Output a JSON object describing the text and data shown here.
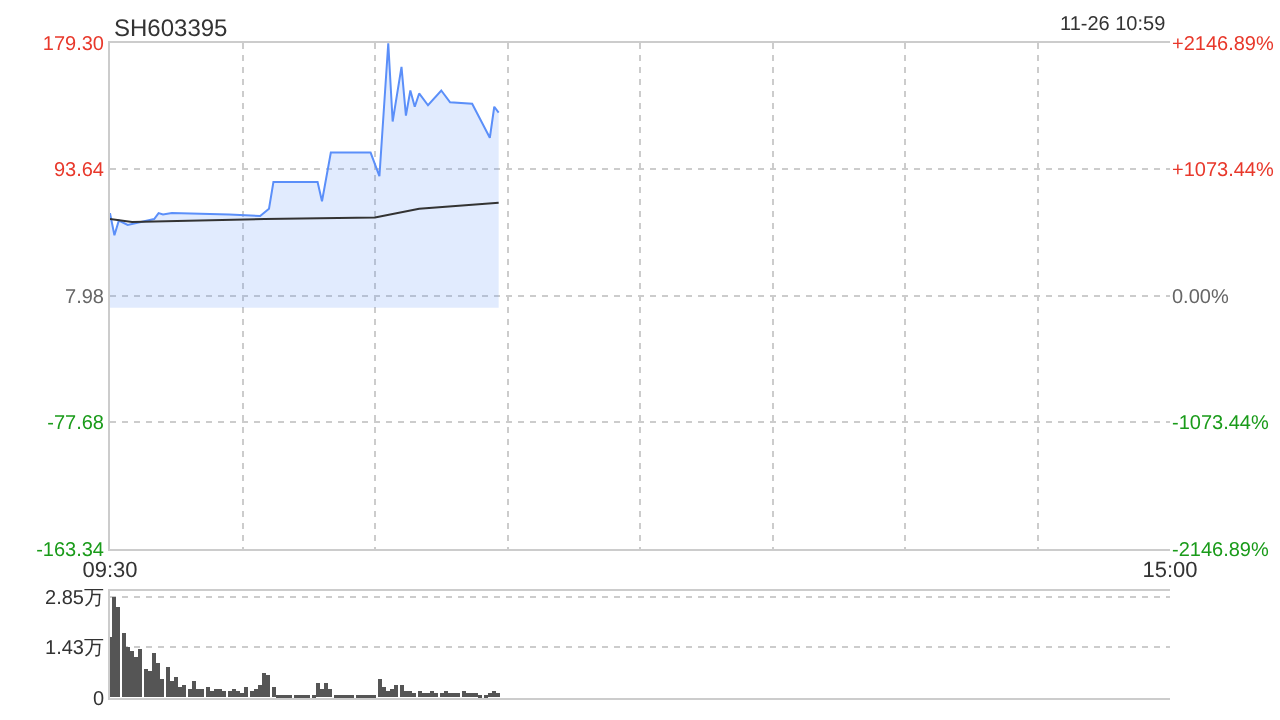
{
  "chart_data": [
    {
      "type": "line",
      "title": "SH603395",
      "annotations": [
        "11-26 10:59"
      ],
      "grid": true,
      "marker": "none",
      "categories": [
        "09:30",
        null,
        null,
        null,
        null,
        null,
        null,
        null,
        null,
        null,
        null,
        null,
        null,
        null,
        null,
        null,
        null,
        null,
        null,
        null,
        null,
        null,
        null,
        null,
        null,
        null,
        null,
        null,
        null,
        null,
        null,
        null,
        null,
        null,
        null,
        null,
        null,
        null,
        null,
        null,
        null,
        null,
        null,
        null,
        null,
        null,
        null,
        null,
        null,
        null,
        null,
        null,
        null,
        null,
        null,
        null,
        null,
        null,
        null,
        null,
        null,
        null,
        null,
        null,
        null,
        null,
        null,
        null,
        null,
        null,
        null,
        null,
        null,
        null,
        null,
        null,
        null,
        null,
        null,
        null,
        null,
        null,
        null,
        null,
        null,
        null,
        null,
        null,
        null,
        null,
        null,
        null,
        null,
        null,
        null,
        null,
        null,
        null,
        null,
        null,
        null,
        null,
        null,
        null,
        null,
        null,
        null,
        null,
        null,
        null,
        null,
        null,
        null,
        null,
        null,
        null,
        null,
        null,
        null,
        null,
        null,
        null,
        null,
        null,
        null,
        null,
        null,
        null,
        null,
        null,
        null,
        null,
        null,
        null,
        null,
        null,
        null,
        null,
        null,
        null,
        null,
        null,
        null,
        null,
        null,
        null,
        null,
        null,
        null,
        null,
        null,
        null,
        null,
        null,
        null,
        null,
        null,
        null,
        null,
        null,
        null,
        null,
        null,
        null,
        null,
        null,
        null,
        null,
        null,
        null,
        null,
        null,
        null,
        null,
        null,
        null,
        null,
        null,
        null,
        null,
        null,
        null,
        null,
        null,
        null,
        null,
        null,
        null,
        null,
        null,
        null,
        null,
        null,
        null,
        null,
        null,
        null,
        null,
        null,
        null,
        null,
        null,
        null,
        null,
        null,
        null,
        null,
        null,
        null,
        null,
        null,
        null,
        null,
        null,
        null,
        null,
        null,
        null,
        null,
        null,
        null,
        null,
        null,
        null,
        null,
        null,
        null,
        null,
        null,
        null,
        null,
        null,
        null,
        null,
        null,
        null,
        null,
        null,
        null,
        null,
        "15:00"
      ],
      "ylim": [
        -163.34,
        179.3
      ],
      "yticks": [
        {
          "value": -163.34,
          "label": "-163.34"
        },
        {
          "value": -77.68,
          "label": "-77.68"
        },
        {
          "value": 7.98,
          "label": "7.98"
        },
        {
          "value": 93.64,
          "label": "93.64"
        },
        {
          "value": 179.3,
          "label": "179.30"
        }
      ],
      "y2lim": [
        -2146.89,
        2146.89
      ],
      "y2ticks": [
        {
          "value": -2146.89,
          "label": "-2146.89%"
        },
        {
          "value": -1073.44,
          "label": "-1073.44%"
        },
        {
          "value": 0,
          "label": "0.00%"
        },
        {
          "value": 1073.44,
          "label": "+1073.44%"
        },
        {
          "value": 2146.89,
          "label": "+2146.89%"
        }
      ],
      "series": [
        {
          "type": "area",
          "color": "#5b8ff9",
          "values": [
            64,
            49,
            59,
            null,
            56,
            null,
            null,
            58,
            null,
            null,
            60,
            64,
            63,
            null,
            64,
            null,
            null,
            null,
            null,
            null,
            null,
            null,
            null,
            null,
            null,
            null,
            null,
            63,
            null,
            null,
            null,
            null,
            null,
            null,
            62,
            null,
            67,
            85,
            null,
            null,
            null,
            null,
            null,
            null,
            null,
            null,
            null,
            85,
            72,
            null,
            105,
            null,
            null,
            null,
            null,
            null,
            null,
            null,
            null,
            105,
            null,
            89,
            null,
            179,
            126,
            null,
            163,
            130,
            147,
            136,
            145,
            null,
            137,
            null,
            null,
            147,
            null,
            139,
            null,
            null,
            null,
            null,
            138,
            null,
            null,
            null,
            115,
            136,
            132,
            null,
            null,
            null,
            null,
            null,
            null,
            null,
            null,
            null,
            null,
            null,
            null,
            null,
            null,
            null,
            null,
            null,
            null,
            null,
            null,
            null,
            null,
            null,
            null,
            null,
            null,
            null,
            null,
            null,
            null,
            null,
            null,
            null,
            null,
            null,
            null,
            null,
            null,
            null,
            null,
            null,
            null,
            null,
            null,
            null,
            null,
            null,
            null,
            null,
            null,
            null,
            null,
            null,
            null,
            null,
            null,
            null,
            null,
            null,
            null,
            null,
            null,
            null,
            null,
            null,
            null,
            null,
            null,
            null,
            null,
            null,
            null,
            null,
            null,
            null,
            null,
            null,
            null,
            null,
            null,
            null,
            null,
            null,
            null,
            null,
            null,
            null,
            null,
            null,
            null,
            null,
            null,
            null,
            null,
            null,
            null,
            null,
            null,
            null,
            null,
            null,
            null,
            null,
            null,
            null,
            null,
            null,
            null,
            null,
            null,
            null,
            null,
            null,
            null,
            null,
            null,
            null,
            null,
            null,
            null,
            null,
            null,
            null,
            null,
            null,
            null,
            null,
            null,
            null,
            null,
            null,
            null,
            null,
            null,
            null,
            null,
            null,
            null,
            null,
            null,
            null,
            null,
            null,
            null,
            null,
            null,
            null,
            null,
            null,
            null,
            null,
            null
          ]
        },
        {
          "type": "line",
          "color": "#333333",
          "values": [
            60,
            null,
            null,
            null,
            null,
            58,
            null,
            null,
            null,
            null,
            null,
            null,
            null,
            null,
            null,
            null,
            null,
            null,
            null,
            null,
            null,
            null,
            null,
            null,
            null,
            null,
            null,
            null,
            null,
            null,
            null,
            null,
            null,
            null,
            null,
            60,
            null,
            null,
            null,
            null,
            null,
            null,
            null,
            null,
            null,
            null,
            null,
            null,
            null,
            null,
            null,
            null,
            null,
            null,
            null,
            null,
            null,
            null,
            null,
            null,
            61,
            null,
            null,
            null,
            null,
            null,
            null,
            null,
            null,
            null,
            67,
            null,
            null,
            null,
            null,
            null,
            null,
            null,
            null,
            null,
            null,
            null,
            null,
            null,
            null,
            null,
            null,
            null,
            71,
            null,
            null,
            null,
            null,
            null,
            null,
            null,
            null,
            null,
            null,
            null,
            null,
            null,
            null,
            null,
            null,
            null,
            null,
            null,
            null,
            null,
            null,
            null,
            null,
            null,
            null,
            null,
            null,
            null,
            null,
            null,
            null,
            null,
            null,
            null,
            null,
            null,
            null,
            null,
            null,
            null,
            null,
            null,
            null,
            null,
            null,
            null,
            null,
            null,
            null,
            null,
            null,
            null,
            null,
            null,
            null,
            null,
            null,
            null,
            null,
            null,
            null,
            null,
            null,
            null,
            null,
            null,
            null,
            null,
            null,
            null,
            null,
            null,
            null,
            null,
            null,
            null,
            null,
            null,
            null,
            null,
            null,
            null,
            null,
            null,
            null,
            null,
            null,
            null,
            null,
            null,
            null,
            null,
            null,
            null,
            null,
            null,
            null,
            null,
            null,
            null,
            null,
            null,
            null,
            null,
            null,
            null,
            null,
            null,
            null,
            null,
            null,
            null,
            null,
            null,
            null,
            null,
            null,
            null,
            null,
            null,
            null,
            null,
            null,
            null,
            null,
            null,
            null,
            null,
            null,
            null,
            null,
            null,
            null,
            null,
            null,
            null,
            null,
            null,
            null,
            null,
            null,
            null,
            null,
            null,
            null,
            null,
            null,
            null,
            null,
            null,
            null
          ]
        }
      ]
    },
    {
      "type": "bar",
      "grid": "y",
      "tick_labels": "y",
      "categories": [
        null,
        null,
        null,
        null,
        null,
        null,
        null,
        null,
        null,
        null,
        null,
        null,
        null,
        null,
        null,
        null,
        null,
        null,
        null,
        null,
        null,
        null,
        null,
        null,
        null,
        null,
        null,
        null,
        null,
        null,
        null,
        null,
        null,
        null,
        null,
        null,
        null,
        null,
        null,
        null,
        null,
        null,
        null,
        null,
        null,
        null,
        null,
        null,
        null,
        null,
        null,
        null,
        null,
        null,
        null,
        null,
        null,
        null,
        null,
        null,
        null,
        null,
        null,
        null,
        null,
        null,
        null,
        null,
        null,
        null,
        null,
        null,
        null,
        null,
        null,
        null,
        null,
        null,
        null,
        null,
        null,
        null,
        null,
        null,
        null,
        null,
        null,
        null,
        null,
        null,
        null,
        null,
        null,
        null,
        null,
        null,
        null,
        null,
        null,
        null,
        null,
        null,
        null,
        null,
        null,
        null,
        null,
        null,
        null,
        null,
        null,
        null,
        null,
        null,
        null,
        null,
        null,
        null,
        null,
        null,
        null,
        null,
        null,
        null,
        null,
        null,
        null,
        null,
        null,
        null,
        null,
        null,
        null,
        null,
        null,
        null,
        null,
        null,
        null,
        null,
        null,
        null,
        null,
        null,
        null,
        null,
        null,
        null,
        null,
        null,
        null,
        null,
        null,
        null,
        null,
        null,
        null,
        null,
        null,
        null,
        null,
        null,
        null,
        null,
        null,
        null,
        null,
        null,
        null,
        null,
        null,
        null,
        null,
        null,
        null,
        null,
        null,
        null,
        null,
        null,
        null,
        null,
        null,
        null,
        null,
        null,
        null,
        null,
        null,
        null,
        null,
        null,
        null,
        null,
        null,
        null,
        null,
        null,
        null,
        null,
        null,
        null,
        null,
        null,
        null,
        null,
        null,
        null,
        null,
        null,
        null,
        null,
        null,
        null,
        null,
        null,
        null,
        null,
        null,
        null,
        null,
        null,
        null,
        null,
        null,
        null,
        null,
        null,
        null,
        null,
        null,
        null,
        null,
        null,
        null,
        null,
        null,
        null,
        null,
        null,
        null
      ],
      "ylim": [
        0,
        3.0
      ],
      "yticks": [
        {
          "value": 0,
          "label": "0"
        },
        {
          "value": 1.43,
          "label": "1.43万"
        },
        {
          "value": 2.85,
          "label": "2.85万"
        }
      ],
      "series": [
        {
          "color": "#555555",
          "values": [
            1.71,
            2.85,
            2.57,
            1.81,
            1.43,
            1.33,
            1.14,
            1.39,
            0.8,
            0.76,
            1.27,
            0.95,
            0.51,
            0.89,
            0.48,
            0.57,
            0.32,
            0.38,
            0.25,
            0.48,
            0.23,
            0.23,
            0.29,
            0.19,
            0.25,
            0.25,
            0.19,
            0.19,
            0.25,
            0.19,
            0.15,
            0.32,
            0.19,
            0.23,
            0.38,
            0.67,
            0.63,
            0.29,
            0.06,
            0.06,
            0.06,
            0.06,
            0.06,
            0.06,
            0.06,
            0.06,
            0.06,
            0.44,
            0.25,
            0.44,
            0.25,
            0.1,
            0.1,
            0.1,
            0.1,
            0.1,
            0.06,
            0.06,
            0.06,
            0.06,
            0.06,
            0.55,
            0.29,
            0.19,
            0.25,
            0.34,
            0.34,
            0.2,
            0.2,
            0.15,
            0.2,
            0.15,
            0.15,
            0.2,
            0.15,
            0.15,
            0.2,
            0.15,
            0.15,
            0.15,
            0.2,
            0.15,
            0.15,
            0.15,
            0.1,
            0.1,
            0.15,
            0.2,
            0.15,
            null,
            null,
            null,
            null,
            null,
            null,
            null,
            null,
            null,
            null,
            null,
            null,
            null,
            null,
            null,
            null,
            null,
            null,
            null,
            null,
            null,
            null,
            null,
            null,
            null,
            null,
            null,
            null,
            null,
            null,
            null,
            null,
            null,
            null,
            null,
            null,
            null,
            null,
            null,
            null,
            null,
            null,
            null,
            null,
            null,
            null,
            null,
            null,
            null,
            null,
            null,
            null,
            null,
            null,
            null,
            null,
            null,
            null,
            null,
            null,
            null,
            null,
            null,
            null,
            null,
            null,
            null,
            null,
            null,
            null,
            null,
            null,
            null,
            null,
            null,
            null,
            null,
            null,
            null,
            null,
            null,
            null,
            null,
            null,
            null,
            null,
            null,
            null,
            null,
            null,
            null,
            null,
            null,
            null,
            null,
            null,
            null,
            null,
            null,
            null,
            null,
            null,
            null,
            null,
            null,
            null,
            null,
            null,
            null,
            null,
            null,
            null,
            null,
            null,
            null,
            null,
            null,
            null,
            null,
            null,
            null,
            null,
            null,
            null,
            null,
            null,
            null,
            null,
            null,
            null,
            null,
            null,
            null,
            null,
            null,
            null,
            null,
            null,
            null,
            null,
            null,
            null,
            null,
            null,
            null,
            null,
            null,
            null,
            null,
            null,
            null,
            null
          ]
        }
      ]
    }
  ]
}
